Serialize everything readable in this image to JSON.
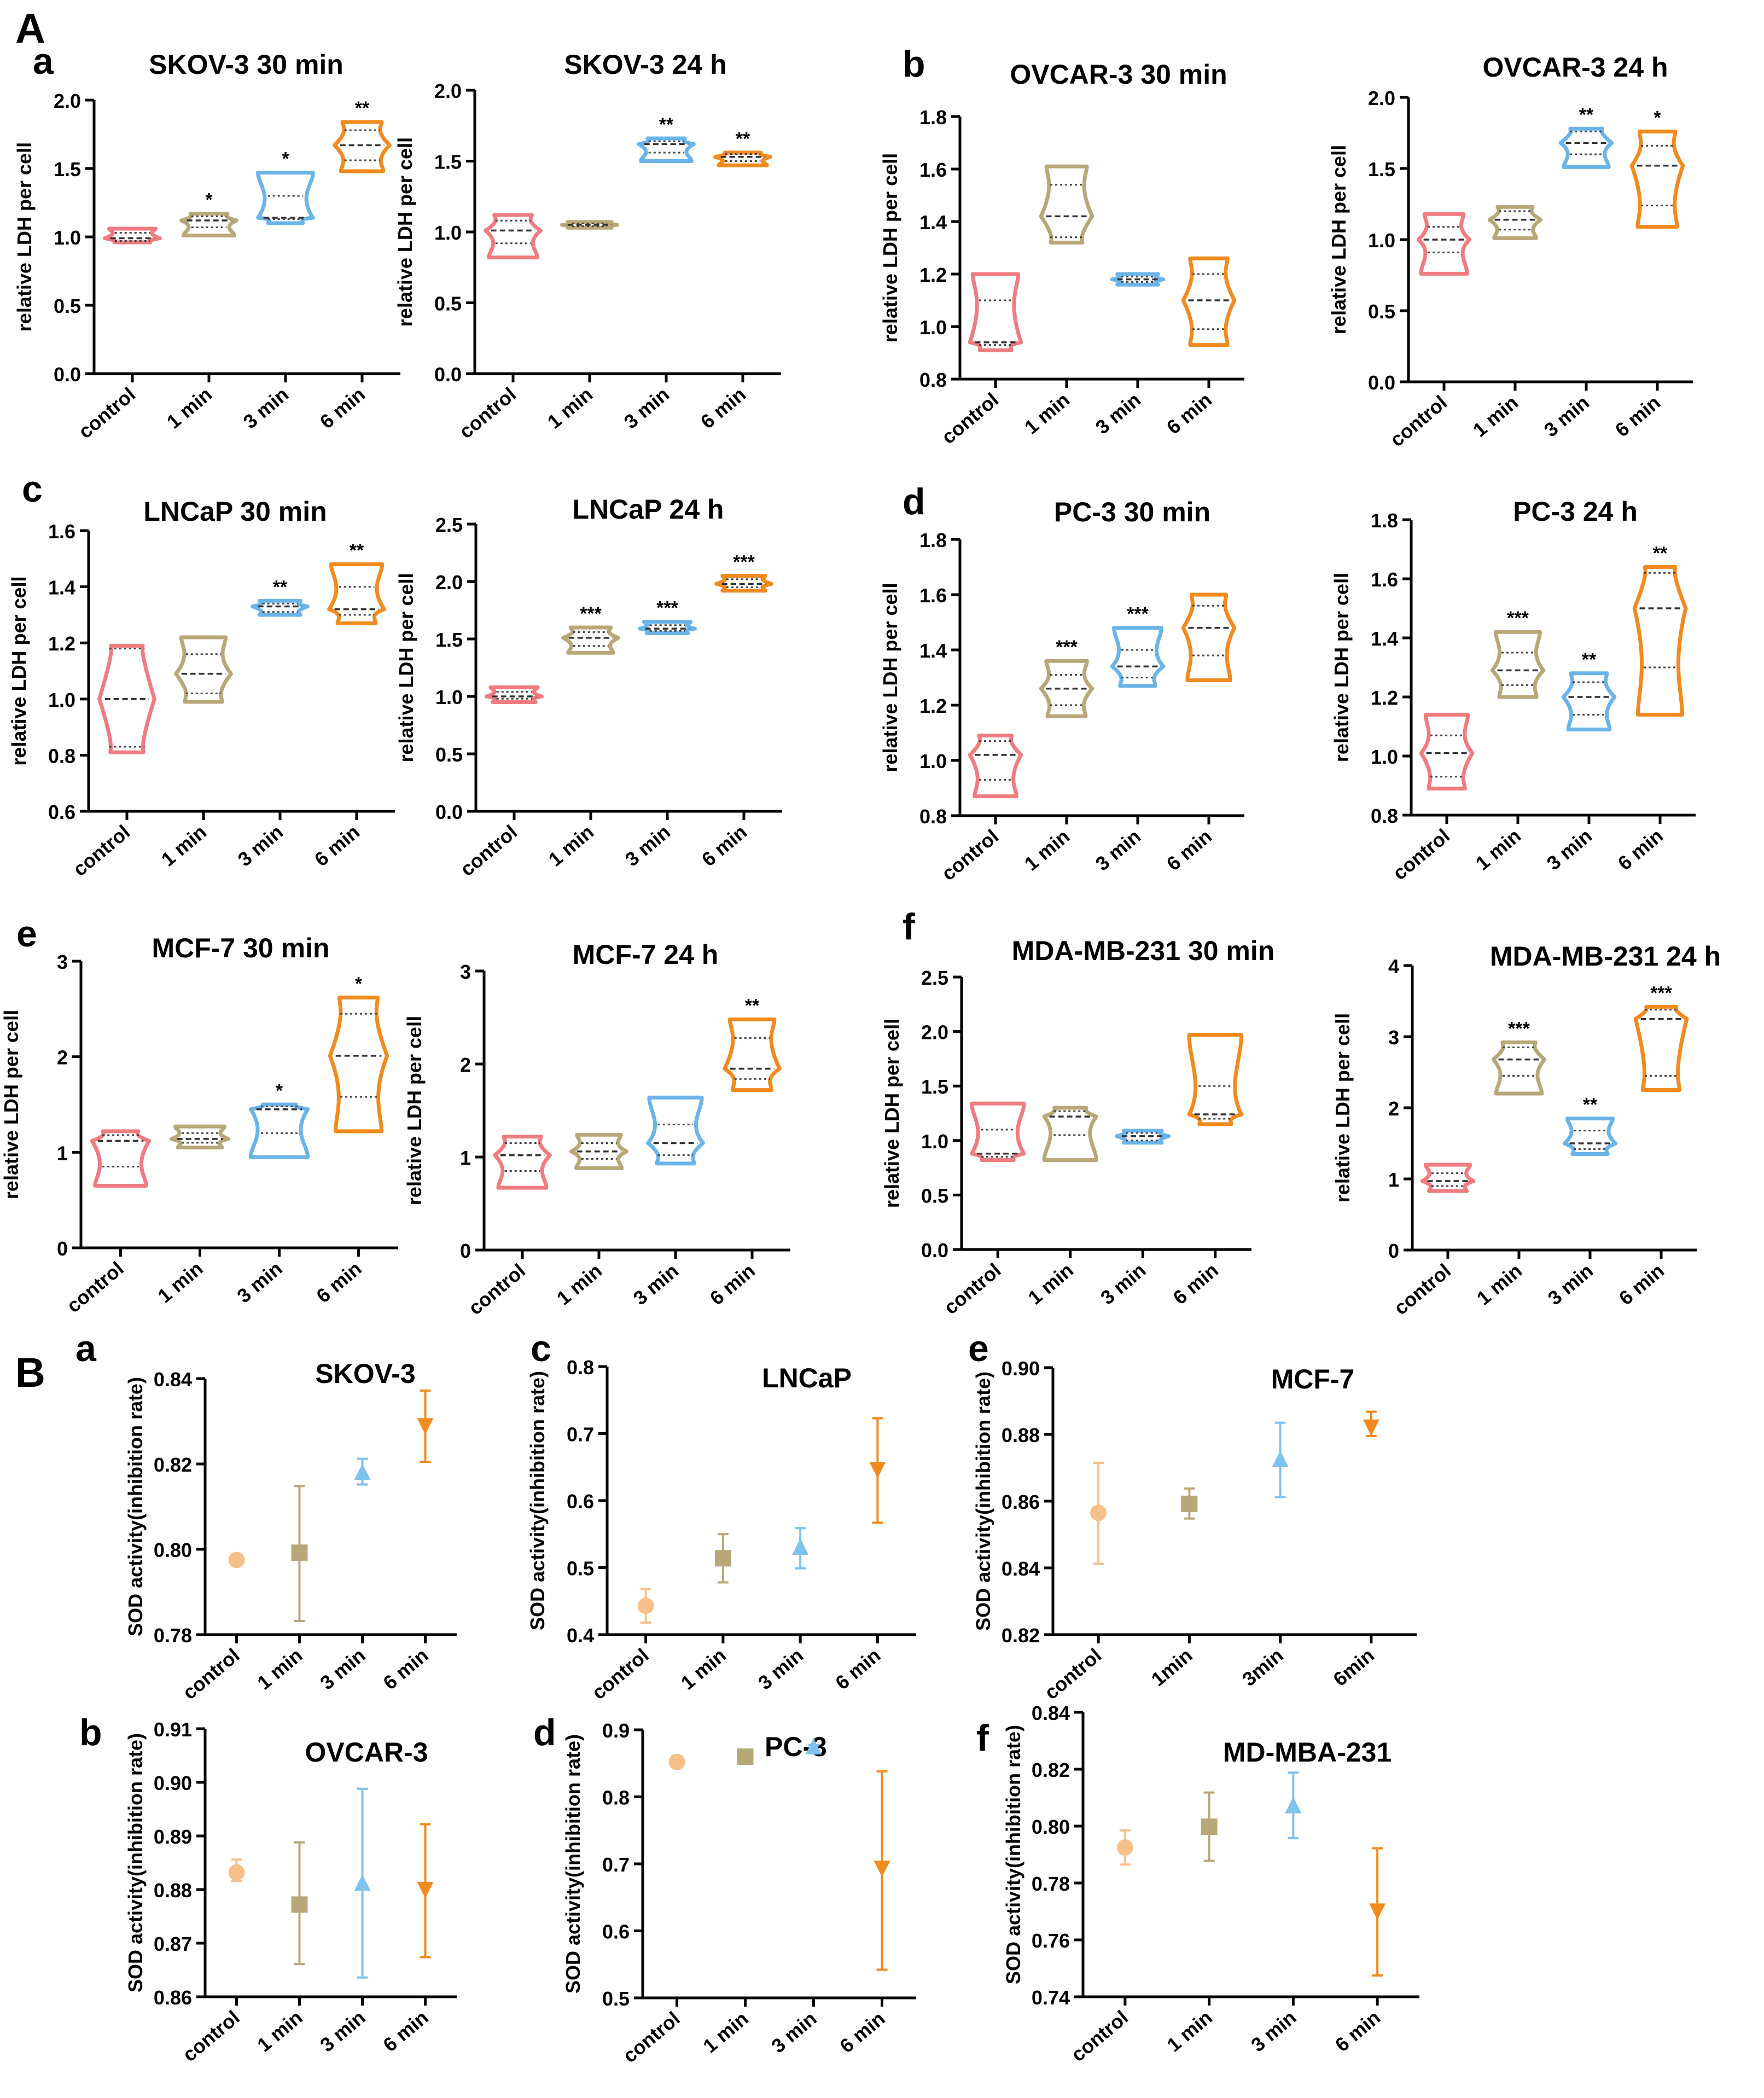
{
  "section_labels": [
    "A",
    "B"
  ],
  "colors": {
    "control": "#f07c80",
    "min1": "#b8a878",
    "min3": "#6ab4ea",
    "min6": "#f28a1e",
    "sod_control": "#f7c08a",
    "sod_min1": "#b8a878",
    "sod_min3": "#7ec2ee",
    "sod_min6": "#f28a1e"
  },
  "chart_data": [
    {
      "id": "Aa1",
      "panel_letter": "a",
      "type": "violin",
      "title": "SKOV-3  30 min",
      "ylabel": "relative LDH per cell",
      "ylim": [
        0,
        2
      ],
      "yticks": [
        "0.0",
        "0.5",
        "1.0",
        "1.5",
        "2.0"
      ],
      "categories": [
        "control",
        "1 min",
        "3 min",
        "6 min"
      ],
      "violins": [
        {
          "min": 0.96,
          "max": 1.06,
          "median": 0.99,
          "q1": 0.97,
          "q3": 1.03
        },
        {
          "min": 1.01,
          "max": 1.17,
          "median": 1.12,
          "q1": 1.07,
          "q3": 1.15
        },
        {
          "min": 1.1,
          "max": 1.47,
          "median": 1.14,
          "q1": 1.13,
          "q3": 1.3
        },
        {
          "min": 1.48,
          "max": 1.84,
          "median": 1.67,
          "q1": 1.56,
          "q3": 1.78
        }
      ],
      "significance": [
        "",
        "*",
        "*",
        "**"
      ]
    },
    {
      "id": "Aa2",
      "panel_letter": "",
      "type": "violin",
      "title": "SKOV-3  24 h",
      "ylabel": "relative LDH per cell",
      "ylim": [
        0,
        2
      ],
      "yticks": [
        "0.0",
        "0.5",
        "1.0",
        "1.5",
        "2.0"
      ],
      "categories": [
        "control",
        "1 min",
        "3 min",
        "6 min"
      ],
      "violins": [
        {
          "min": 0.82,
          "max": 1.12,
          "median": 1.01,
          "q1": 0.92,
          "q3": 1.08
        },
        {
          "min": 1.03,
          "max": 1.07,
          "median": 1.05,
          "q1": 1.04,
          "q3": 1.06
        },
        {
          "min": 1.5,
          "max": 1.66,
          "median": 1.62,
          "q1": 1.56,
          "q3": 1.64
        },
        {
          "min": 1.47,
          "max": 1.56,
          "median": 1.53,
          "q1": 1.5,
          "q3": 1.55
        }
      ],
      "significance": [
        "",
        "",
        "**",
        "**"
      ]
    },
    {
      "id": "Ab1",
      "panel_letter": "b",
      "type": "violin",
      "title": "OVCAR-3  30 min",
      "ylabel": "relative LDH per cell",
      "ylim": [
        0.8,
        1.8
      ],
      "yticks": [
        "0.8",
        "1.0",
        "1.2",
        "1.4",
        "1.6",
        "1.8"
      ],
      "categories": [
        "control",
        "1 min",
        "3 min",
        "6 min"
      ],
      "violins": [
        {
          "min": 0.91,
          "max": 1.2,
          "median": 0.94,
          "q1": 0.93,
          "q3": 1.1
        },
        {
          "min": 1.32,
          "max": 1.61,
          "median": 1.42,
          "q1": 1.34,
          "q3": 1.54
        },
        {
          "min": 1.16,
          "max": 1.2,
          "median": 1.18,
          "q1": 1.17,
          "q3": 1.19
        },
        {
          "min": 0.93,
          "max": 1.26,
          "median": 1.1,
          "q1": 0.99,
          "q3": 1.2
        }
      ],
      "significance": [
        "",
        "",
        "",
        ""
      ]
    },
    {
      "id": "Ab2",
      "panel_letter": "",
      "type": "violin",
      "title": "OVCAR-3  24 h",
      "ylabel": "relative LDH per cell",
      "ylim": [
        0,
        2
      ],
      "yticks": [
        "0.0",
        "0.5",
        "1.0",
        "1.5",
        "2.0"
      ],
      "categories": [
        "control",
        "1 min",
        "3 min",
        "6 min"
      ],
      "violins": [
        {
          "min": 0.76,
          "max": 1.18,
          "median": 1.0,
          "q1": 0.91,
          "q3": 1.09
        },
        {
          "min": 1.01,
          "max": 1.23,
          "median": 1.14,
          "q1": 1.07,
          "q3": 1.2
        },
        {
          "min": 1.51,
          "max": 1.78,
          "median": 1.68,
          "q1": 1.6,
          "q3": 1.76
        },
        {
          "min": 1.09,
          "max": 1.76,
          "median": 1.52,
          "q1": 1.24,
          "q3": 1.66
        }
      ],
      "significance": [
        "",
        "",
        "**",
        "*"
      ]
    },
    {
      "id": "Ac1",
      "panel_letter": "c",
      "type": "violin",
      "title": "LNCaP  30 min",
      "ylabel": "relative LDH per cell",
      "ylim": [
        0.6,
        1.6
      ],
      "yticks": [
        "0.6",
        "0.8",
        "1.0",
        "1.2",
        "1.4",
        "1.6"
      ],
      "categories": [
        "control",
        "1 min",
        "3 min",
        "6 min"
      ],
      "violins": [
        {
          "min": 0.81,
          "max": 1.19,
          "median": 1.0,
          "q1": 0.83,
          "q3": 1.18
        },
        {
          "min": 0.99,
          "max": 1.22,
          "median": 1.09,
          "q1": 1.02,
          "q3": 1.16
        },
        {
          "min": 1.3,
          "max": 1.35,
          "median": 1.33,
          "q1": 1.31,
          "q3": 1.34
        },
        {
          "min": 1.27,
          "max": 1.48,
          "median": 1.32,
          "q1": 1.3,
          "q3": 1.4
        }
      ],
      "significance": [
        "",
        "",
        "**",
        "**"
      ]
    },
    {
      "id": "Ac2",
      "panel_letter": "",
      "type": "violin",
      "title": "LNCaP  24 h",
      "ylabel": "relative LDH per cell",
      "ylim": [
        0,
        2.5
      ],
      "yticks": [
        "0.0",
        "0.5",
        "1.0",
        "1.5",
        "2.0",
        "2.5"
      ],
      "categories": [
        "control",
        "1 min",
        "3 min",
        "6 min"
      ],
      "violins": [
        {
          "min": 0.95,
          "max": 1.08,
          "median": 1.0,
          "q1": 0.98,
          "q3": 1.04
        },
        {
          "min": 1.38,
          "max": 1.6,
          "median": 1.51,
          "q1": 1.44,
          "q3": 1.56
        },
        {
          "min": 1.55,
          "max": 1.65,
          "median": 1.59,
          "q1": 1.57,
          "q3": 1.62
        },
        {
          "min": 1.92,
          "max": 2.05,
          "median": 1.98,
          "q1": 1.95,
          "q3": 2.02
        }
      ],
      "significance": [
        "",
        "***",
        "***",
        "***"
      ]
    },
    {
      "id": "Ad1",
      "panel_letter": "d",
      "type": "violin",
      "title": "PC-3  30 min",
      "ylabel": "relative LDH per cell",
      "ylim": [
        0.8,
        1.8
      ],
      "yticks": [
        "0.8",
        "1.0",
        "1.2",
        "1.4",
        "1.6",
        "1.8"
      ],
      "categories": [
        "control",
        "1 min",
        "3 min",
        "6 min"
      ],
      "violins": [
        {
          "min": 0.87,
          "max": 1.09,
          "median": 1.02,
          "q1": 0.93,
          "q3": 1.07
        },
        {
          "min": 1.16,
          "max": 1.36,
          "median": 1.26,
          "q1": 1.2,
          "q3": 1.31
        },
        {
          "min": 1.27,
          "max": 1.48,
          "median": 1.34,
          "q1": 1.3,
          "q3": 1.4
        },
        {
          "min": 1.29,
          "max": 1.6,
          "median": 1.48,
          "q1": 1.38,
          "q3": 1.56
        }
      ],
      "significance": [
        "",
        "***",
        "***",
        ""
      ]
    },
    {
      "id": "Ad2",
      "panel_letter": "",
      "type": "violin",
      "title": "PC-3  24 h",
      "ylabel": "relative LDH per cell",
      "ylim": [
        0.8,
        1.8
      ],
      "yticks": [
        "0.8",
        "1.0",
        "1.2",
        "1.4",
        "1.6",
        "1.8"
      ],
      "categories": [
        "control",
        "1 min",
        "3 min",
        "6 min"
      ],
      "violins": [
        {
          "min": 0.89,
          "max": 1.14,
          "median": 1.01,
          "q1": 0.93,
          "q3": 1.07
        },
        {
          "min": 1.2,
          "max": 1.42,
          "median": 1.29,
          "q1": 1.24,
          "q3": 1.35
        },
        {
          "min": 1.09,
          "max": 1.28,
          "median": 1.2,
          "q1": 1.14,
          "q3": 1.25
        },
        {
          "min": 1.14,
          "max": 1.64,
          "median": 1.5,
          "q1": 1.3,
          "q3": 1.62
        }
      ],
      "significance": [
        "",
        "***",
        "**",
        "**"
      ]
    },
    {
      "id": "Ae1",
      "panel_letter": "e",
      "type": "violin",
      "title": "MCF-7  30 min",
      "ylabel": "relative LDH per cell",
      "ylim": [
        0,
        3
      ],
      "yticks": [
        "0",
        "1",
        "2",
        "3"
      ],
      "categories": [
        "control",
        "1 min",
        "3 min",
        "6 min"
      ],
      "violins": [
        {
          "min": 0.65,
          "max": 1.22,
          "median": 1.12,
          "q1": 0.85,
          "q3": 1.18
        },
        {
          "min": 1.05,
          "max": 1.27,
          "median": 1.14,
          "q1": 1.1,
          "q3": 1.2
        },
        {
          "min": 0.95,
          "max": 1.5,
          "median": 1.45,
          "q1": 1.2,
          "q3": 1.48
        },
        {
          "min": 1.22,
          "max": 2.62,
          "median": 2.01,
          "q1": 1.58,
          "q3": 2.45
        }
      ],
      "significance": [
        "",
        "",
        "*",
        "*"
      ]
    },
    {
      "id": "Ae2",
      "panel_letter": "",
      "type": "violin",
      "title": "MCF-7  24 h",
      "ylabel": "relative LDH per cell",
      "ylim": [
        0,
        3
      ],
      "yticks": [
        "0",
        "1",
        "2",
        "3"
      ],
      "categories": [
        "control",
        "1 min",
        "3 min",
        "6 min"
      ],
      "violins": [
        {
          "min": 0.67,
          "max": 1.22,
          "median": 1.02,
          "q1": 0.85,
          "q3": 1.15
        },
        {
          "min": 0.88,
          "max": 1.24,
          "median": 1.06,
          "q1": 0.98,
          "q3": 1.15
        },
        {
          "min": 0.93,
          "max": 1.64,
          "median": 1.15,
          "q1": 1.02,
          "q3": 1.35
        },
        {
          "min": 1.72,
          "max": 2.48,
          "median": 1.95,
          "q1": 1.84,
          "q3": 2.28
        }
      ],
      "significance": [
        "",
        "",
        "",
        "**"
      ]
    },
    {
      "id": "Af1",
      "panel_letter": "f",
      "type": "violin",
      "title": "MDA-MB-231  30 min",
      "ylabel": "relative LDH per cell",
      "ylim": [
        0,
        2.5
      ],
      "yticks": [
        "0.0",
        "0.5",
        "1.0",
        "1.5",
        "2.0",
        "2.5"
      ],
      "categories": [
        "control",
        "1 min",
        "3 min",
        "6 min"
      ],
      "violins": [
        {
          "min": 0.82,
          "max": 1.34,
          "median": 0.88,
          "q1": 0.85,
          "q3": 1.1
        },
        {
          "min": 0.82,
          "max": 1.3,
          "median": 1.22,
          "q1": 1.05,
          "q3": 1.27
        },
        {
          "min": 0.98,
          "max": 1.09,
          "median": 1.04,
          "q1": 1.0,
          "q3": 1.07
        },
        {
          "min": 1.15,
          "max": 1.97,
          "median": 1.24,
          "q1": 1.2,
          "q3": 1.5
        }
      ],
      "significance": [
        "",
        "",
        "",
        ""
      ]
    },
    {
      "id": "Af2",
      "panel_letter": "",
      "type": "violin",
      "title": "MDA-MB-231  24 h",
      "ylabel": "relative LDH per cell",
      "ylim": [
        0,
        4
      ],
      "yticks": [
        "0",
        "1",
        "2",
        "3",
        "4"
      ],
      "categories": [
        "control",
        "1 min",
        "3 min",
        "6 min"
      ],
      "violins": [
        {
          "min": 0.83,
          "max": 1.2,
          "median": 0.97,
          "q1": 0.9,
          "q3": 1.08
        },
        {
          "min": 2.2,
          "max": 2.92,
          "median": 2.68,
          "q1": 2.45,
          "q3": 2.85
        },
        {
          "min": 1.35,
          "max": 1.85,
          "median": 1.5,
          "q1": 1.42,
          "q3": 1.68
        },
        {
          "min": 2.25,
          "max": 3.42,
          "median": 3.25,
          "q1": 2.45,
          "q3": 3.38
        }
      ],
      "significance": [
        "",
        "***",
        "**",
        "***"
      ]
    },
    {
      "id": "Ba",
      "panel_letter": "a",
      "type": "scatter",
      "title": "SKOV-3",
      "ylabel": "SOD activity(inhibition rate)",
      "ylim": [
        0.78,
        0.84
      ],
      "yticks": [
        "0.78",
        "0.80",
        "0.82",
        "0.84"
      ],
      "categories": [
        "control",
        "1 min",
        "3 min",
        "6 min"
      ],
      "points": [
        {
          "mean": 0.7975,
          "low": 0.7965,
          "high": 0.7985,
          "marker": "circle"
        },
        {
          "mean": 0.7992,
          "low": 0.7832,
          "high": 0.8148,
          "marker": "square"
        },
        {
          "mean": 0.8178,
          "low": 0.8152,
          "high": 0.8212,
          "marker": "triangle-up"
        },
        {
          "mean": 0.8292,
          "low": 0.8205,
          "high": 0.8372,
          "marker": "triangle-down"
        }
      ]
    },
    {
      "id": "Bb",
      "panel_letter": "b",
      "type": "scatter",
      "title": "OVCAR-3",
      "ylabel": "SOD activity(inhibition rate)",
      "ylim": [
        0.86,
        0.91
      ],
      "yticks": [
        "0.86",
        "0.87",
        "0.88",
        "0.89",
        "0.90",
        "0.91"
      ],
      "categories": [
        "control",
        "1 min",
        "3 min",
        "6 min"
      ],
      "points": [
        {
          "mean": 0.8832,
          "low": 0.8816,
          "high": 0.8856,
          "marker": "circle"
        },
        {
          "mean": 0.8772,
          "low": 0.8661,
          "high": 0.8888,
          "marker": "square"
        },
        {
          "mean": 0.881,
          "low": 0.8636,
          "high": 0.8988,
          "marker": "triangle-up"
        },
        {
          "mean": 0.8802,
          "low": 0.8674,
          "high": 0.8922,
          "marker": "triangle-down"
        }
      ]
    },
    {
      "id": "Bc",
      "panel_letter": "c",
      "type": "scatter",
      "title": "LNCaP",
      "ylabel": "SOD activity(inhibition rate)",
      "ylim": [
        0.4,
        0.8
      ],
      "yticks": [
        "0.4",
        "0.5",
        "0.6",
        "0.7",
        "0.8"
      ],
      "categories": [
        "control",
        "1 min",
        "3 min",
        "6 min"
      ],
      "points": [
        {
          "mean": 0.443,
          "low": 0.418,
          "high": 0.468,
          "marker": "circle"
        },
        {
          "mean": 0.514,
          "low": 0.478,
          "high": 0.55,
          "marker": "square"
        },
        {
          "mean": 0.529,
          "low": 0.499,
          "high": 0.559,
          "marker": "triangle-up"
        },
        {
          "mean": 0.648,
          "low": 0.567,
          "high": 0.723,
          "marker": "triangle-down"
        }
      ]
    },
    {
      "id": "Bd",
      "panel_letter": "d",
      "type": "scatter",
      "title": "PC-3",
      "ylabel": "SOD activity(inhibition rate)",
      "ylim": [
        0.5,
        0.9
      ],
      "yticks": [
        "0.5",
        "0.6",
        "0.7",
        "0.8",
        "0.9"
      ],
      "categories": [
        "control",
        "1 min",
        "3 min",
        "6 min"
      ],
      "points": [
        {
          "mean": 0.852,
          "low": 0.844,
          "high": 0.861,
          "marker": "circle"
        },
        {
          "mean": 0.86,
          "low": 0.858,
          "high": 0.862,
          "marker": "square"
        },
        {
          "mean": 0.873,
          "low": 0.869,
          "high": 0.877,
          "marker": "triangle-up"
        },
        {
          "mean": 0.695,
          "low": 0.542,
          "high": 0.838,
          "marker": "triangle-down"
        }
      ]
    },
    {
      "id": "Be",
      "panel_letter": "e",
      "type": "scatter",
      "title": "MCF-7",
      "ylabel": "SOD activity(inhibition rate)",
      "ylim": [
        0.82,
        0.9
      ],
      "yticks": [
        "0.82",
        "0.84",
        "0.86",
        "0.88",
        "0.90"
      ],
      "categories": [
        "control",
        "1min",
        "3min",
        "6min"
      ],
      "points": [
        {
          "mean": 0.8565,
          "low": 0.8412,
          "high": 0.8715,
          "marker": "circle"
        },
        {
          "mean": 0.8592,
          "low": 0.8548,
          "high": 0.8638,
          "marker": "square"
        },
        {
          "mean": 0.8722,
          "low": 0.8612,
          "high": 0.8835,
          "marker": "triangle-up"
        },
        {
          "mean": 0.8825,
          "low": 0.8795,
          "high": 0.8868,
          "marker": "triangle-down"
        }
      ]
    },
    {
      "id": "Bf",
      "panel_letter": "f",
      "type": "scatter",
      "title": "MD-MBA-231",
      "ylabel": "SOD activity(inhibition rate)",
      "ylim": [
        0.74,
        0.84
      ],
      "yticks": [
        "0.74",
        "0.76",
        "0.78",
        "0.80",
        "0.82",
        "0.84"
      ],
      "categories": [
        "control",
        "1 min",
        "3 min",
        "6 min"
      ],
      "points": [
        {
          "mean": 0.7925,
          "low": 0.7865,
          "high": 0.7985,
          "marker": "circle"
        },
        {
          "mean": 0.7998,
          "low": 0.7878,
          "high": 0.8118,
          "marker": "square"
        },
        {
          "mean": 0.8068,
          "low": 0.7958,
          "high": 0.8188,
          "marker": "triangle-up"
        },
        {
          "mean": 0.7705,
          "low": 0.7475,
          "high": 0.7922,
          "marker": "triangle-down"
        }
      ]
    }
  ]
}
